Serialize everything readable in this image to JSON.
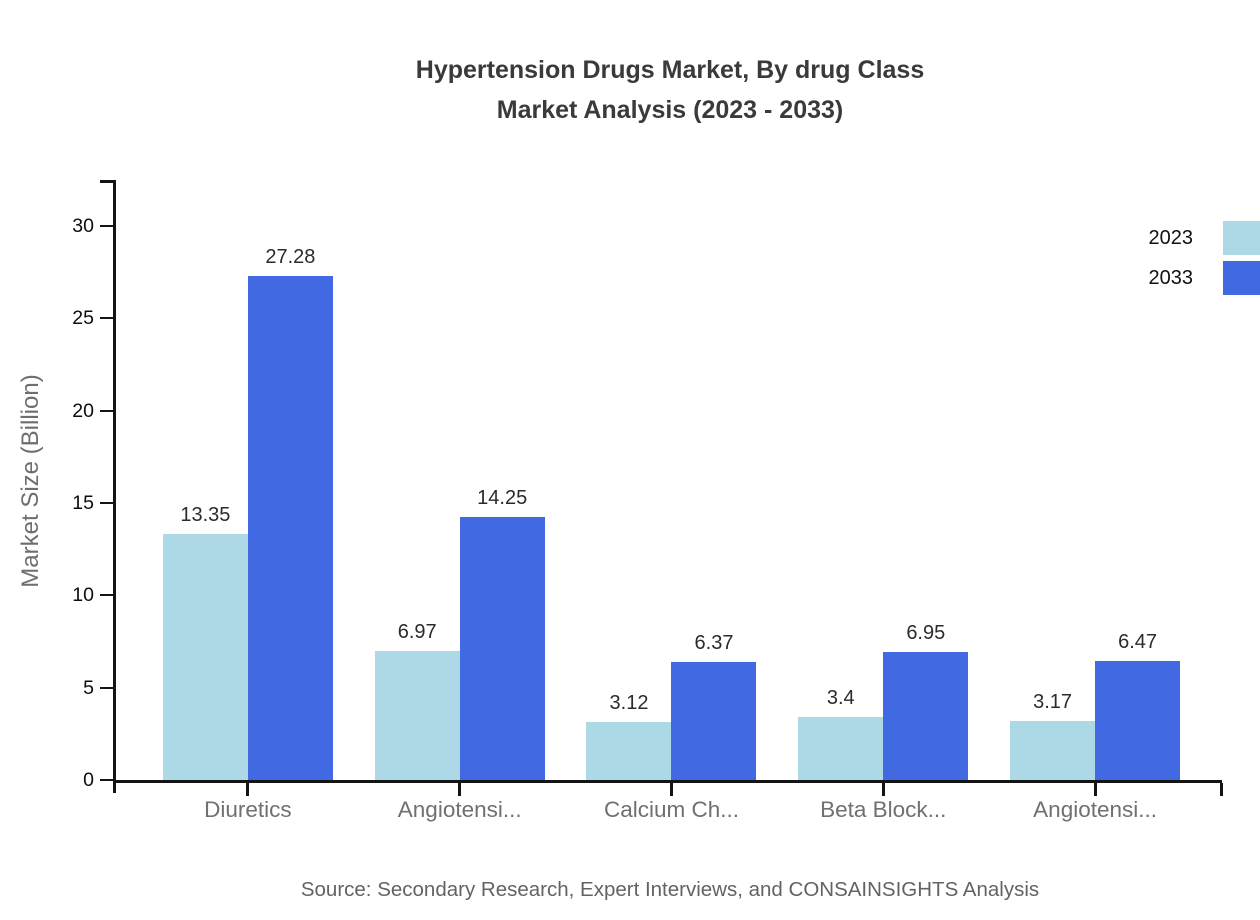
{
  "title": {
    "line1": "Hypertension Drugs Market, By drug Class",
    "line2": "Market Analysis (2023 - 2033)"
  },
  "source_note": "Source: Secondary Research, Expert Interviews, and CONSAINSIGHTS Analysis",
  "chart_data": {
    "type": "bar",
    "title": "Hypertension Drugs Market, By drug Class Market Analysis (2023 - 2033)",
    "categories": [
      "Diuretics",
      "Angiotensi...",
      "Calcium Ch...",
      "Beta Block...",
      "Angiotensi..."
    ],
    "series": [
      {
        "name": "2023",
        "color": "#ADD8E6",
        "values": [
          13.35,
          6.97,
          3.12,
          3.4,
          3.17
        ]
      },
      {
        "name": "2033",
        "color": "#4169E1",
        "values": [
          27.28,
          14.25,
          6.37,
          6.95,
          6.47
        ]
      }
    ],
    "xlabel": "",
    "ylabel": "Market Size (Billion)",
    "yticks": [
      0,
      5,
      10,
      15,
      20,
      25,
      30
    ],
    "ylim": [
      0,
      32.5
    ],
    "grid": false,
    "legend_position": "top-right",
    "value_labels_shown": true,
    "axis_color": "#141414"
  }
}
